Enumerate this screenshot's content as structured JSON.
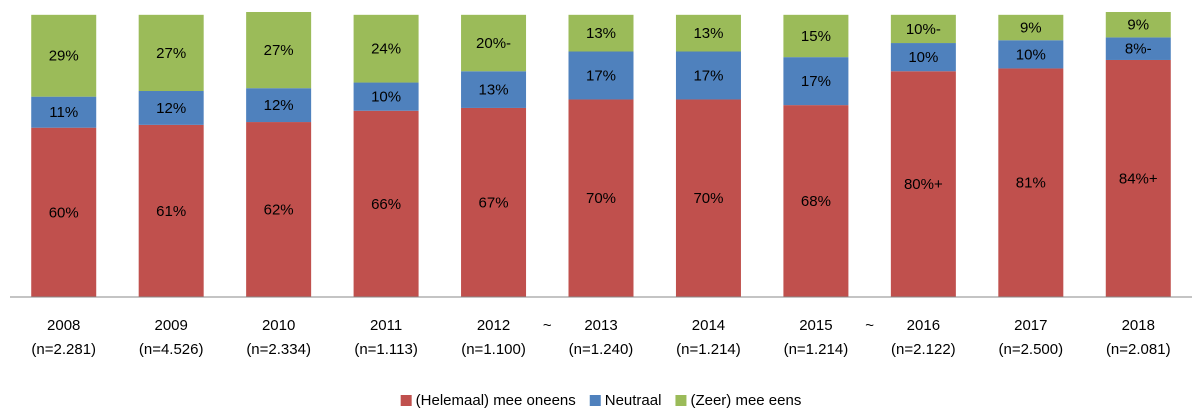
{
  "chart_data": {
    "type": "stacked_bar",
    "categories": [
      "2008",
      "2009",
      "2010",
      "2011",
      "2012",
      "2013",
      "2014",
      "2015",
      "2016",
      "2017",
      "2018"
    ],
    "sample_sizes": [
      "(n=2.281)",
      "(n=4.526)",
      "(n=2.334)",
      "(n=1.113)",
      "(n=1.100)",
      "(n=1.240)",
      "(n=1.214)",
      "(n=1.214)",
      "(n=2.122)",
      "(n=2.500)",
      "(n=2.081)"
    ],
    "series": [
      {
        "name": "(Helemaal) mee oneens",
        "color": "#c0504d",
        "values": [
          60,
          61,
          62,
          66,
          67,
          70,
          70,
          68,
          80,
          81,
          84
        ],
        "value_labels": [
          "60%",
          "61%",
          "62%",
          "66%",
          "67%",
          "70%",
          "70%",
          "68%",
          "80%+",
          "81%",
          "84%+"
        ]
      },
      {
        "name": "Neutraal",
        "color": "#4f81bd",
        "values": [
          11,
          12,
          12,
          10,
          13,
          17,
          17,
          17,
          10,
          10,
          8
        ],
        "value_labels": [
          "11%",
          "12%",
          "12%",
          "10%",
          "13%",
          "17%",
          "17%",
          "17%",
          "10%",
          "10%",
          "8%-"
        ]
      },
      {
        "name": "(Zeer) mee eens",
        "color": "#9bbb59",
        "values": [
          29,
          27,
          27,
          24,
          20,
          13,
          13,
          15,
          10,
          9,
          9
        ],
        "value_labels": [
          "29%",
          "27%",
          "27%",
          "24%",
          "20%-",
          "13%",
          "13%",
          "15%",
          "10%-",
          "9%",
          "9%"
        ]
      }
    ],
    "annotations": [
      {
        "text": "~",
        "after": "2012"
      },
      {
        "text": "~",
        "after": "2015"
      }
    ],
    "ylim": [
      0,
      101
    ]
  }
}
